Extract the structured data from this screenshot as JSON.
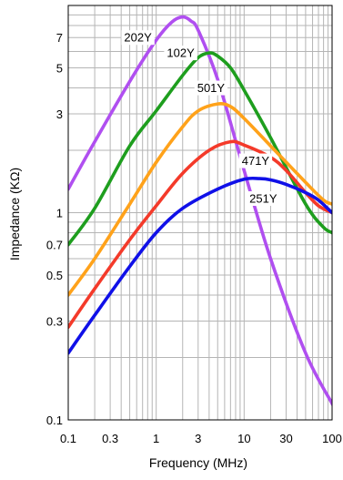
{
  "chart_data": {
    "type": "line",
    "title": "",
    "xlabel": "Frequency (MHz)",
    "ylabel": "Impedance (KΩ)",
    "x_scale": "log",
    "y_scale": "log",
    "xlim": [
      0.1,
      100
    ],
    "ylim": [
      0.1,
      10
    ],
    "x_ticks": [
      0.1,
      0.3,
      1,
      3,
      10,
      30,
      100
    ],
    "x_tick_labels": [
      "0.1",
      "0.3",
      "1",
      "3",
      "10",
      "30",
      "100"
    ],
    "y_ticks": [
      0.1,
      0.3,
      0.5,
      0.7,
      1,
      3,
      5,
      7
    ],
    "y_tick_labels": [
      "0.1",
      "0.3",
      "0.5",
      "0.7",
      "1",
      "3",
      "5",
      "7"
    ],
    "grid": true,
    "series": [
      {
        "name": "202Y",
        "color": "#b04ff0",
        "label_at": [
          0.62,
          7.0
        ],
        "points": [
          [
            0.1,
            1.3
          ],
          [
            0.2,
            2.2
          ],
          [
            0.5,
            4.3
          ],
          [
            1,
            6.8
          ],
          [
            1.5,
            8.3
          ],
          [
            2,
            8.8
          ],
          [
            2.5,
            8.4
          ],
          [
            3,
            7.6
          ],
          [
            5,
            4.4
          ],
          [
            10,
            1.6
          ],
          [
            20,
            0.6
          ],
          [
            50,
            0.21
          ],
          [
            100,
            0.12
          ],
          [
            110,
            0.113
          ]
        ]
      },
      {
        "name": "102Y",
        "color": "#1e9e1e",
        "label_at": [
          1.9,
          5.9
        ],
        "points": [
          [
            0.1,
            0.7
          ],
          [
            0.2,
            1.05
          ],
          [
            0.5,
            2.1
          ],
          [
            1,
            3.1
          ],
          [
            2,
            4.6
          ],
          [
            3,
            5.6
          ],
          [
            4,
            5.9
          ],
          [
            5,
            5.7
          ],
          [
            7,
            5.0
          ],
          [
            10,
            3.9
          ],
          [
            20,
            2.3
          ],
          [
            50,
            1.1
          ],
          [
            80,
            0.85
          ],
          [
            100,
            0.8
          ],
          [
            110,
            0.78
          ]
        ]
      },
      {
        "name": "501Y",
        "color": "#ffa21a",
        "label_at": [
          4.2,
          4.0
        ],
        "points": [
          [
            0.1,
            0.4
          ],
          [
            0.2,
            0.6
          ],
          [
            0.5,
            1.1
          ],
          [
            1,
            1.75
          ],
          [
            2,
            2.6
          ],
          [
            3,
            3.1
          ],
          [
            5,
            3.35
          ],
          [
            7,
            3.25
          ],
          [
            10,
            2.85
          ],
          [
            20,
            2.1
          ],
          [
            50,
            1.4
          ],
          [
            80,
            1.15
          ],
          [
            100,
            1.1
          ],
          [
            110,
            1.08
          ]
        ]
      },
      {
        "name": "471Y",
        "color": "#f43a2a",
        "label_at": [
          13.5,
          1.78
        ],
        "points": [
          [
            0.1,
            0.28
          ],
          [
            0.2,
            0.43
          ],
          [
            0.5,
            0.74
          ],
          [
            1,
            1.08
          ],
          [
            2,
            1.55
          ],
          [
            4,
            2.0
          ],
          [
            7,
            2.2
          ],
          [
            10,
            2.12
          ],
          [
            20,
            1.85
          ],
          [
            30,
            1.6
          ],
          [
            50,
            1.25
          ],
          [
            70,
            1.08
          ],
          [
            100,
            1.0
          ],
          [
            110,
            1.0
          ]
        ]
      },
      {
        "name": "251Y",
        "color": "#1010e8",
        "label_at": [
          16.5,
          1.17
        ],
        "points": [
          [
            0.1,
            0.21
          ],
          [
            0.2,
            0.32
          ],
          [
            0.5,
            0.55
          ],
          [
            1,
            0.8
          ],
          [
            2,
            1.05
          ],
          [
            5,
            1.3
          ],
          [
            10,
            1.45
          ],
          [
            15,
            1.46
          ],
          [
            20,
            1.44
          ],
          [
            30,
            1.37
          ],
          [
            50,
            1.25
          ],
          [
            70,
            1.15
          ],
          [
            100,
            1.0
          ],
          [
            110,
            0.97
          ]
        ]
      }
    ]
  }
}
